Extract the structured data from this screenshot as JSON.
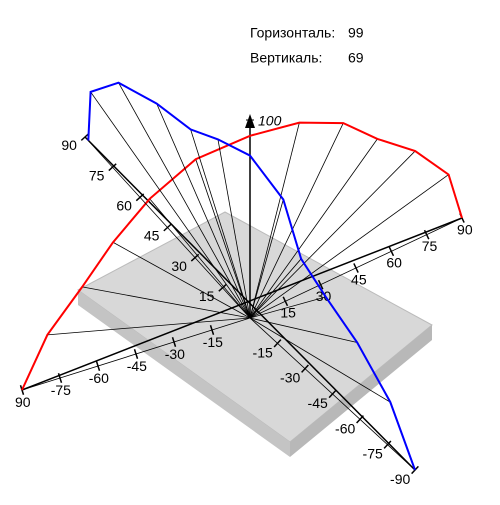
{
  "readout": {
    "horizontal_label": "Горизонталь:",
    "horizontal": 99,
    "vertical_label": "Вертикаль:",
    "vertical": 69
  },
  "chart_data": {
    "type": "polar3d",
    "angles": [
      -90,
      -75,
      -60,
      -45,
      -30,
      -15,
      0,
      15,
      30,
      45,
      60,
      75,
      90
    ],
    "series": [
      {
        "color": "#ff0000",
        "axis": "b",
        "values": [
          100,
          92,
          85,
          85,
          88,
          92,
          92,
          90,
          88,
          85,
          90,
          97,
          100
        ]
      },
      {
        "color": "#0000ff",
        "axis": "a",
        "values": [
          100,
          88,
          75,
          65,
          62,
          78,
          82,
          75,
          72,
          80,
          92,
          100,
          98
        ]
      }
    ],
    "ylim": [
      0,
      100
    ],
    "yticks": [
      100
    ],
    "a_ticks": [
      15,
      30,
      45,
      60,
      75,
      90,
      -15,
      -30,
      -45,
      -60,
      -75,
      -90
    ],
    "b_ticks": [
      {
        "value": -90,
        "label": "90"
      },
      -75,
      -60,
      -45,
      -30,
      -15,
      15,
      30,
      45,
      60,
      75,
      90
    ]
  }
}
